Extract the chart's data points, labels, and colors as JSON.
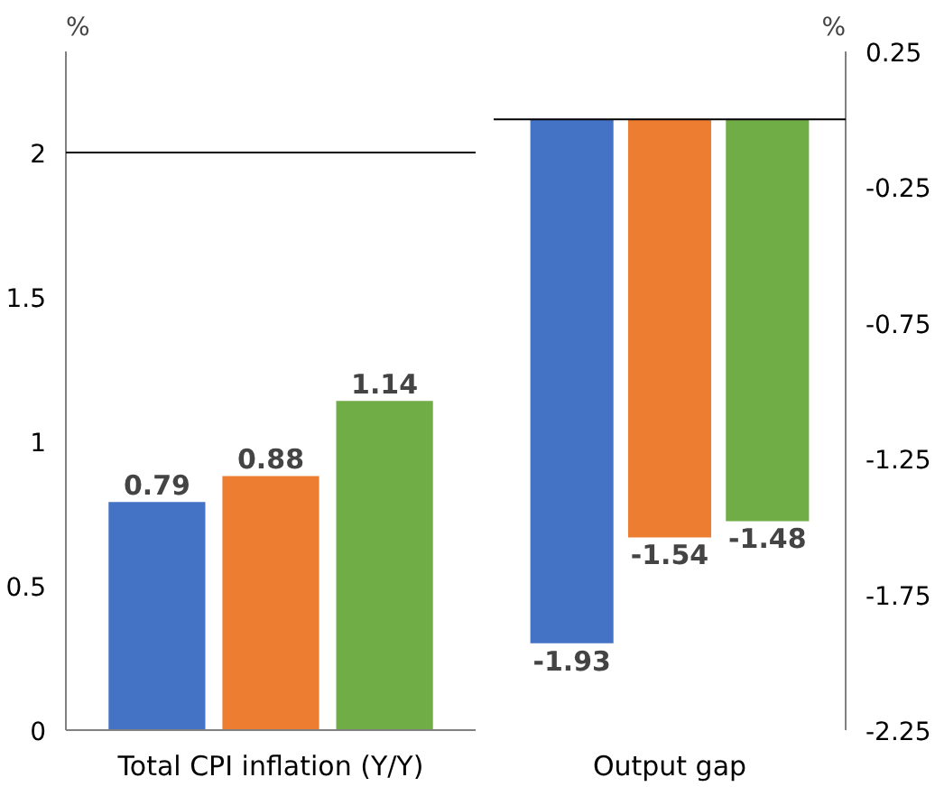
{
  "chart_data": [
    {
      "type": "bar",
      "ylabel": "%",
      "categories": [
        null,
        "Total CPI inflation (Y/Y)",
        null
      ],
      "values": [
        0.79,
        0.88,
        1.14
      ],
      "colors": [
        "#4472c4",
        "#ed7d31",
        "#70ad47"
      ],
      "ylim": [
        0,
        2.35
      ],
      "yticks": [
        0,
        0.5,
        1,
        1.5,
        2
      ],
      "ref_lines": [
        {
          "axis": "y",
          "value": 2
        }
      ],
      "data_labels": true,
      "grid": false,
      "legend": false
    },
    {
      "type": "bar",
      "ylabel": "%",
      "categories": [
        null,
        "Output gap",
        null
      ],
      "values": [
        -1.93,
        -1.54,
        -1.48
      ],
      "colors": [
        "#4472c4",
        "#ed7d31",
        "#70ad47"
      ],
      "ylim": [
        -2.25,
        0.25
      ],
      "yticks": [
        0.25,
        -0.25,
        -0.75,
        -1.25,
        -1.75,
        -2.25
      ],
      "ref_lines": [
        {
          "axis": "y",
          "value": 0
        }
      ],
      "data_labels": true,
      "grid": false,
      "legend": false
    }
  ]
}
